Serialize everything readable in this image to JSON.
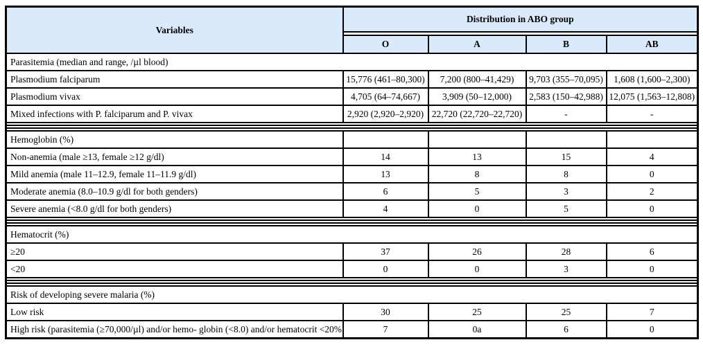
{
  "header": {
    "variables_label": "Variables",
    "group_label": "Distribution in ABO group",
    "columns": [
      "O",
      "A",
      "B",
      "AB"
    ]
  },
  "sections": [
    {
      "title": "Parasitemia (median and range, /µl blood)",
      "title_span": true,
      "rows": [
        {
          "label": "Plasmodium falciparum",
          "values": [
            "15,776 (461–80,300)",
            "7,200 (800–41,429)",
            "9,703 (355–70,095)",
            "1,608 (1,600–2,300)"
          ]
        },
        {
          "label": "Plasmodium vivax",
          "values": [
            "4,705 (64–74,667)",
            "3,909 (50–12,000)",
            "2,583 (150–42,988)",
            "12,075 (1,563–12,808)"
          ]
        },
        {
          "label": "Mixed infections with P. falciparum and P. vivax",
          "values": [
            "2,920 (2,920–2,920)",
            "22,720 (22,720–22,720)",
            "-",
            "-"
          ]
        }
      ]
    },
    {
      "title": "Hemoglobin (%)",
      "title_span": false,
      "rows": [
        {
          "label": "Non-anemia (male ≥13, female ≥12 g/dl)",
          "values": [
            "14",
            "13",
            "15",
            "4"
          ]
        },
        {
          "label": "Mild anemia (male 11–12.9, female 11–11.9 g/dl)",
          "values": [
            "13",
            "8",
            "8",
            "0"
          ]
        },
        {
          "label": "Moderate anemia (8.0–10.9 g/dl for both genders)",
          "values": [
            "6",
            "5",
            "3",
            "2"
          ]
        },
        {
          "label": "Severe anemia (<8.0 g/dl for both genders)",
          "values": [
            "4",
            "0",
            "5",
            "0"
          ]
        }
      ]
    },
    {
      "title": "Hematocrit (%)",
      "title_span": true,
      "rows": [
        {
          "label": "≥20",
          "values": [
            "37",
            "26",
            "28",
            "6"
          ]
        },
        {
          "label": "<20",
          "values": [
            "0",
            "0",
            "3",
            "0"
          ]
        }
      ]
    },
    {
      "title": "Risk of developing severe malaria (%)",
      "title_span": true,
      "rows": [
        {
          "label": "Low risk",
          "values": [
            "30",
            "25",
            "25",
            "7"
          ]
        },
        {
          "label": "High risk (parasitemia (≥70,000/µl) and/or hemo- globin (<8.0) and/or hematocrit <20%",
          "values": [
            "7",
            "0a",
            "6",
            "0"
          ]
        }
      ]
    }
  ],
  "colors": {
    "header_bg": "#dbeafb",
    "border": "#000000",
    "cell_bg": "#ffffff"
  }
}
